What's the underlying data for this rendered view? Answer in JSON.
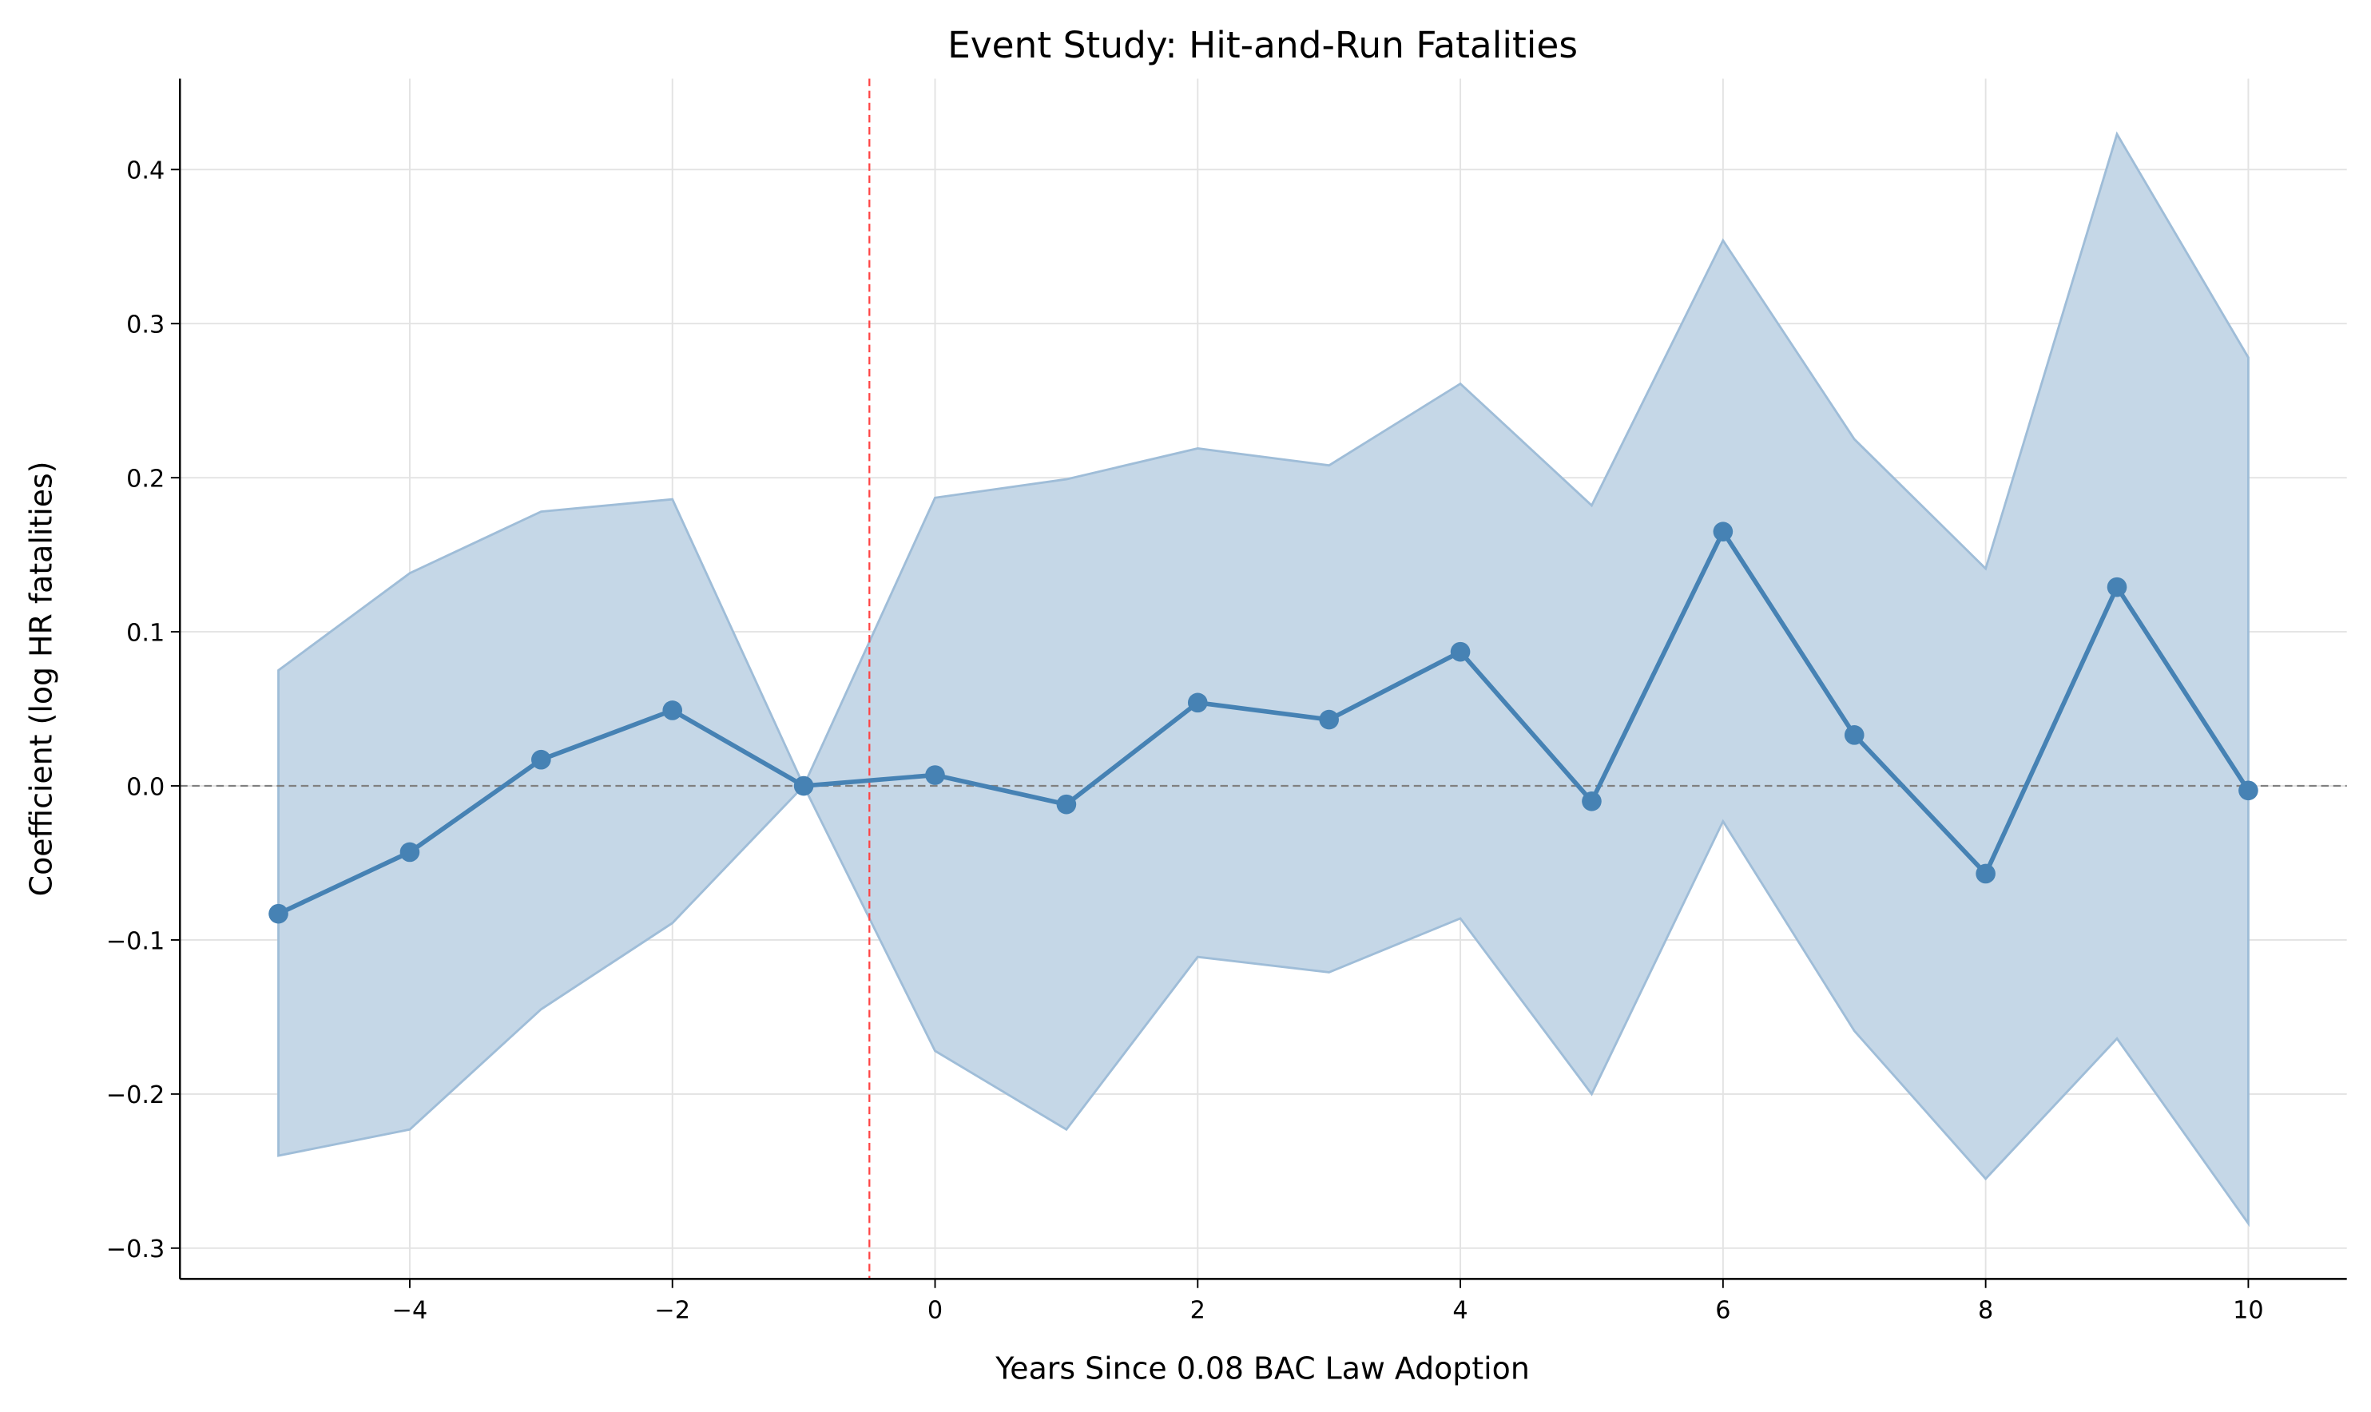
{
  "chart_data": {
    "type": "line",
    "title": "Event Study: Hit-and-Run Fatalities",
    "xlabel": "Years Since 0.08 BAC Law Adoption",
    "ylabel": "Coefficient (log HR fatalities)",
    "xlim": [
      -5.75,
      10.75
    ],
    "ylim": [
      -0.32,
      0.459
    ],
    "xticks": [
      -4,
      -2,
      0,
      2,
      4,
      6,
      8,
      10
    ],
    "xtick_labels": [
      "−4",
      "−2",
      "0",
      "2",
      "4",
      "6",
      "8",
      "10"
    ],
    "yticks": [
      -0.3,
      -0.2,
      -0.1,
      0.0,
      0.1,
      0.2,
      0.3,
      0.4
    ],
    "ytick_labels": [
      "−0.3",
      "−0.2",
      "−0.1",
      "0.0",
      "0.1",
      "0.2",
      "0.3",
      "0.4"
    ],
    "grid": true,
    "x": [
      -5,
      -4,
      -3,
      -2,
      -1,
      0,
      1,
      2,
      3,
      4,
      5,
      6,
      7,
      8,
      9,
      10
    ],
    "series": [
      {
        "values": [
          -0.083,
          -0.043,
          0.017,
          0.049,
          0.0,
          0.007,
          -0.012,
          0.054,
          0.043,
          0.087,
          -0.01,
          0.165,
          0.033,
          -0.057,
          0.129,
          -0.003
        ],
        "ci_upper": [
          0.075,
          0.138,
          0.178,
          0.186,
          0.0,
          0.187,
          0.199,
          0.219,
          0.208,
          0.261,
          0.182,
          0.354,
          0.225,
          0.141,
          0.423,
          0.278
        ],
        "ci_lower": [
          -0.24,
          -0.223,
          -0.145,
          -0.089,
          0.0,
          -0.172,
          -0.223,
          -0.111,
          -0.121,
          -0.086,
          -0.2,
          -0.023,
          -0.159,
          -0.255,
          -0.164,
          -0.284
        ]
      }
    ],
    "reference_lines": {
      "vertical_x": -0.5,
      "horizontal_y": 0.0
    },
    "colors": {
      "line": "#4682b4",
      "band": "#c5d7e7",
      "band_edge": "#9fbdd8",
      "vline": "#ff4444",
      "hline": "#808080"
    }
  }
}
